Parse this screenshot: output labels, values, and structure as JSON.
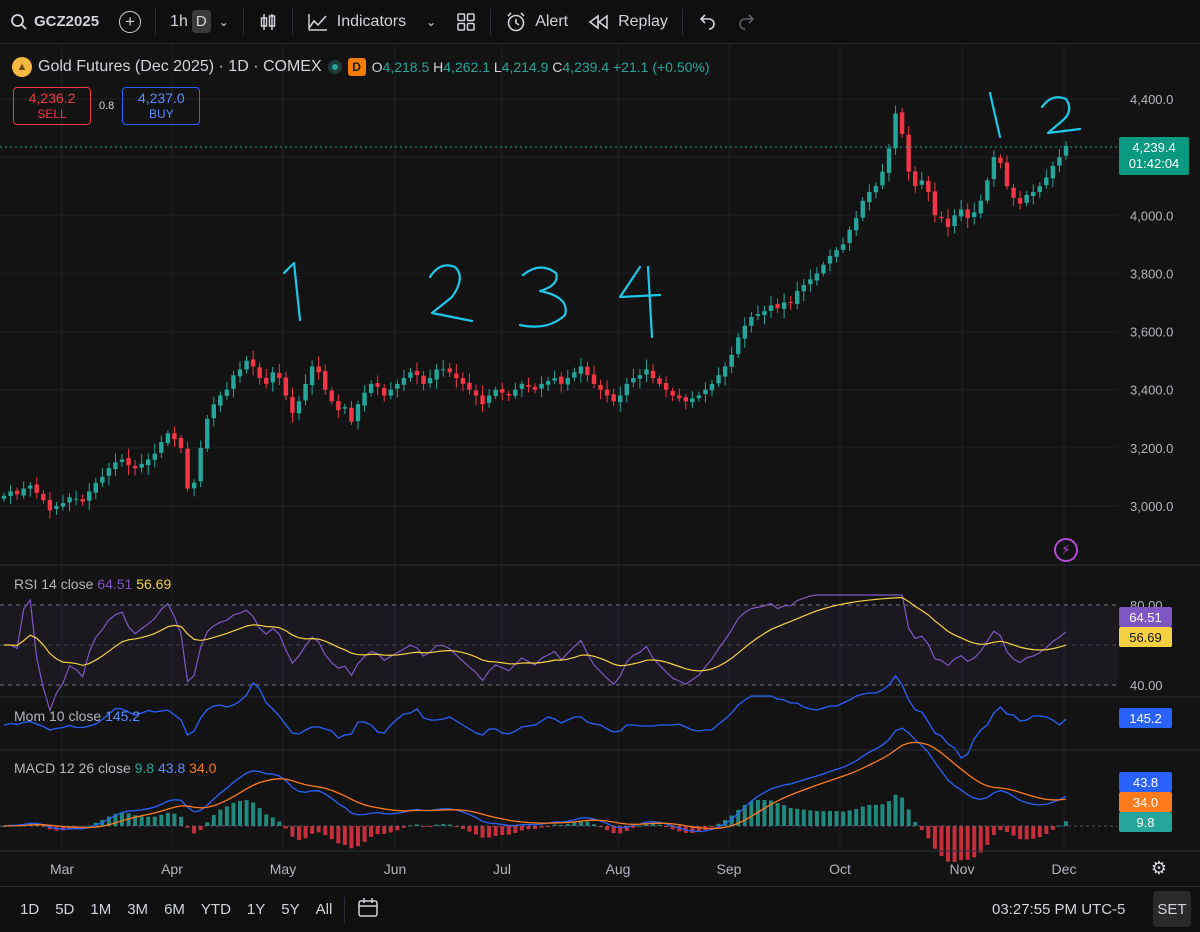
{
  "toolbar": {
    "symbol": "GCZ2025",
    "interval": "1h",
    "interval_active": "D",
    "indicators_label": "Indicators",
    "alert_label": "Alert",
    "replay_label": "Replay"
  },
  "legend": {
    "title": "Gold Futures (Dec 2025) · 1D · COMEX",
    "badge": "D",
    "o_label": "O",
    "o": "4,218.5",
    "h_label": "H",
    "h": "4,262.1",
    "l_label": "L",
    "l": "4,214.9",
    "c_label": "C",
    "c": "4,239.4",
    "change": "+21.1 (+0.50%)"
  },
  "trade": {
    "sell_price": "4,236.2",
    "sell_label": "SELL",
    "spread": "0.8",
    "buy_price": "4,237.0",
    "buy_label": "BUY"
  },
  "price_axis": {
    "labels": [
      "4,400.0",
      "4,000.0",
      "3,800.0",
      "3,600.0",
      "3,400.0",
      "3,200.0",
      "3,000.0"
    ],
    "current_price": "4,239.4",
    "countdown": "01:42:04"
  },
  "annotations": {
    "left_count": [
      "1",
      "2",
      "3",
      "4"
    ],
    "right_count": [
      "1",
      "2"
    ]
  },
  "rsi": {
    "name": "RSI",
    "params": "14 close",
    "value": "64.51",
    "ma_value": "56.69",
    "levels": [
      "80.00",
      "40.00"
    ]
  },
  "mom": {
    "name": "Mom",
    "params": "10 close",
    "value": "145.2"
  },
  "macd": {
    "name": "MACD",
    "params": "12 26 close",
    "hist": "9.8",
    "macd": "43.8",
    "signal": "34.0"
  },
  "time_axis": [
    "Mar",
    "Apr",
    "May",
    "Jun",
    "Jul",
    "Aug",
    "Sep",
    "Oct",
    "Nov",
    "Dec"
  ],
  "bottom": {
    "ranges": [
      "1D",
      "5D",
      "1M",
      "3M",
      "6M",
      "YTD",
      "1Y",
      "5Y",
      "All"
    ],
    "clock": "03:27:55 PM UTC-5",
    "set_label": "SET"
  },
  "colors": {
    "up": "#26a69a",
    "down": "#f23645",
    "rsi": "#7e57c2",
    "rsi_ma": "#f5d042",
    "mom": "#2962ff",
    "macd": "#2962ff",
    "signal": "#ff7a1a",
    "annotation": "#1ec8e8"
  },
  "chart_data": {
    "type": "candlestick",
    "closes": [
      3035,
      3050,
      3040,
      3060,
      3070,
      3045,
      3020,
      2985,
      3000,
      3010,
      3030,
      3025,
      3015,
      3050,
      3080,
      3100,
      3130,
      3150,
      3160,
      3140,
      3130,
      3145,
      3160,
      3180,
      3220,
      3250,
      3230,
      3200,
      3060,
      3080,
      3200,
      3300,
      3350,
      3380,
      3400,
      3450,
      3470,
      3500,
      3480,
      3440,
      3420,
      3460,
      3440,
      3380,
      3320,
      3360,
      3420,
      3480,
      3460,
      3400,
      3360,
      3330,
      3340,
      3290,
      3350,
      3390,
      3420,
      3410,
      3380,
      3400,
      3420,
      3440,
      3460,
      3450,
      3420,
      3440,
      3470,
      3470,
      3460,
      3440,
      3420,
      3400,
      3380,
      3350,
      3380,
      3400,
      3390,
      3380,
      3400,
      3420,
      3410,
      3400,
      3420,
      3430,
      3440,
      3420,
      3440,
      3460,
      3480,
      3450,
      3420,
      3400,
      3380,
      3360,
      3380,
      3420,
      3440,
      3450,
      3470,
      3440,
      3420,
      3400,
      3380,
      3370,
      3360,
      3370,
      3380,
      3400,
      3420,
      3450,
      3480,
      3520,
      3580,
      3620,
      3650,
      3660,
      3670,
      3690,
      3680,
      3700,
      3700,
      3740,
      3760,
      3780,
      3800,
      3830,
      3860,
      3880,
      3900,
      3950,
      3990,
      4050,
      4080,
      4100,
      4150,
      4230,
      4350,
      4280,
      4150,
      4100,
      4120,
      4080,
      4000,
      3990,
      3960,
      4000,
      4020,
      3990,
      4010,
      4050,
      4120,
      4200,
      4180,
      4100,
      4060,
      4040,
      4070,
      4080,
      4100,
      4130,
      4170,
      4200,
      4239
    ],
    "first_month": "Mar",
    "last_close": 4239.4,
    "price_range": [
      2900,
      4420
    ]
  }
}
